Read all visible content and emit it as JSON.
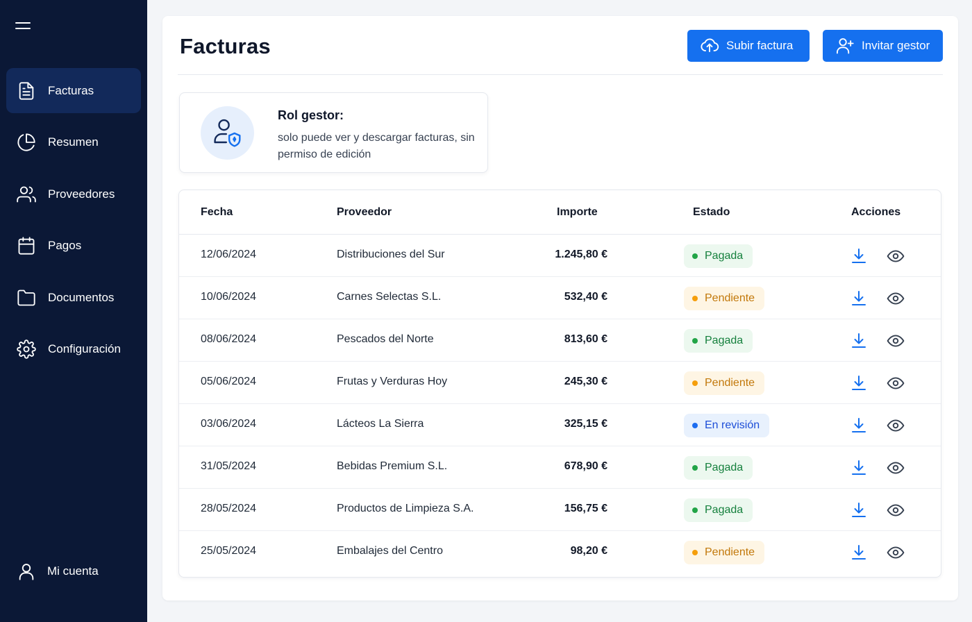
{
  "sidebar": {
    "menu_icon": "hamburger-icon",
    "items": [
      {
        "label": "Facturas",
        "icon": "file-text-icon",
        "active": true
      },
      {
        "label": "Resumen",
        "icon": "pie-chart-icon",
        "active": false
      },
      {
        "label": "Proveedores",
        "icon": "users-icon",
        "active": false
      },
      {
        "label": "Pagos",
        "icon": "calendar-icon",
        "active": false
      },
      {
        "label": "Documentos",
        "icon": "folder-icon",
        "active": false
      },
      {
        "label": "Configuración",
        "icon": "gear-icon",
        "active": false
      }
    ],
    "account": {
      "label": "Mi cuenta",
      "icon": "user-icon"
    }
  },
  "header": {
    "title": "Facturas",
    "upload_label": "Subir factura",
    "invite_label": "Invitar gestor"
  },
  "role": {
    "title": "Rol gestor:",
    "description": "solo puede ver y descargar facturas, sin permiso de edición"
  },
  "table": {
    "columns": [
      "Fecha",
      "Proveedor",
      "Importe",
      "Estado",
      "Acciones"
    ],
    "rows": [
      {
        "date": "12/06/2024",
        "supplier": "Distribuciones del Sur",
        "amount": "1.245,80 €",
        "status": "Pagada",
        "status_type": "paid"
      },
      {
        "date": "10/06/2024",
        "supplier": "Carnes Selectas S.L.",
        "amount": "532,40 €",
        "status": "Pendiente",
        "status_type": "pending"
      },
      {
        "date": "08/06/2024",
        "supplier": "Pescados del Norte",
        "amount": "813,60 €",
        "status": "Pagada",
        "status_type": "paid"
      },
      {
        "date": "05/06/2024",
        "supplier": "Frutas y Verduras Hoy",
        "amount": "245,30 €",
        "status": "Pendiente",
        "status_type": "pending"
      },
      {
        "date": "03/06/2024",
        "supplier": "Lácteos La Sierra",
        "amount": "325,15 €",
        "status": "En revisión",
        "status_type": "review"
      },
      {
        "date": "31/05/2024",
        "supplier": "Bebidas Premium S.L.",
        "amount": "678,90 €",
        "status": "Pagada",
        "status_type": "paid"
      },
      {
        "date": "28/05/2024",
        "supplier": "Productos de Limpieza S.A.",
        "amount": "156,75 €",
        "status": "Pagada",
        "status_type": "paid"
      },
      {
        "date": "25/05/2024",
        "supplier": "Embalajes del Centro",
        "amount": "98,20 €",
        "status": "Pendiente",
        "status_type": "pending"
      }
    ]
  },
  "colors": {
    "sidebar_bg": "#0b1836",
    "sidebar_active": "#12295a",
    "accent": "#1570ef",
    "paid": "#22a447",
    "pending": "#f59e0b",
    "review": "#1d6df0"
  }
}
